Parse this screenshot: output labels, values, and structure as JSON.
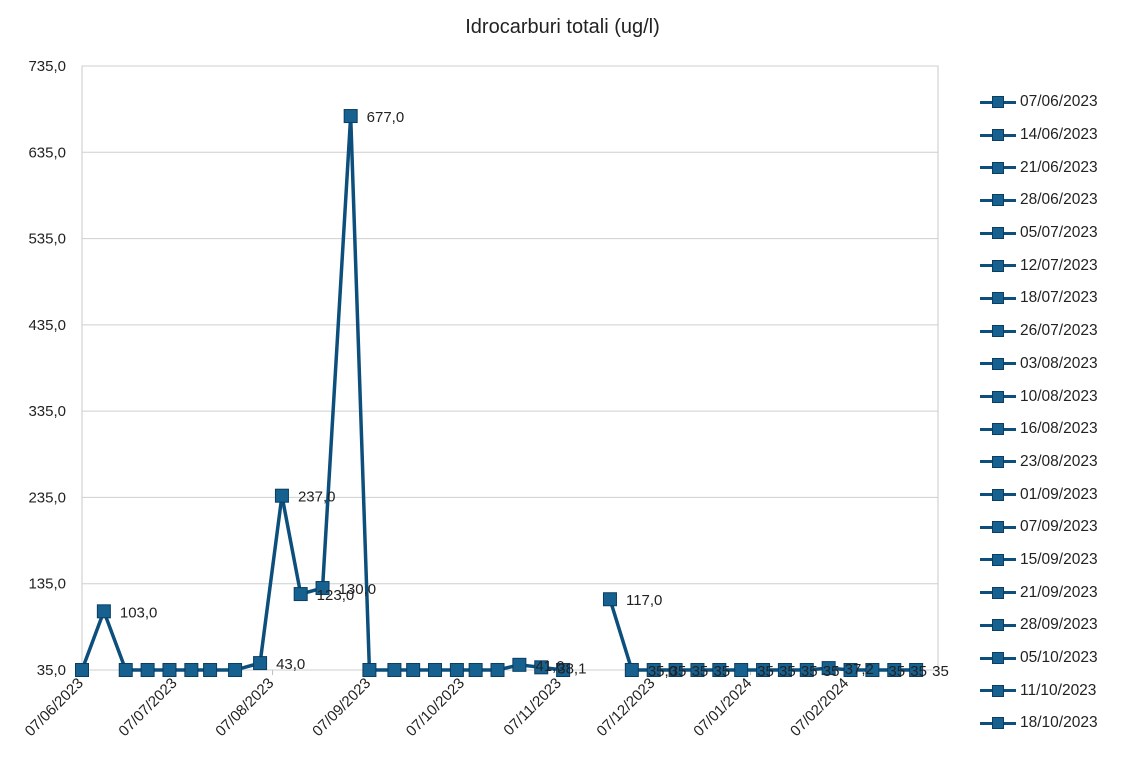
{
  "chart_data": {
    "type": "line",
    "title": "Idrocarburi totali (ug/l)",
    "xlabel": "",
    "ylabel": "",
    "ylim": [
      35,
      735
    ],
    "yticks": [
      "35,0",
      "135,0",
      "235,0",
      "335,0",
      "435,0",
      "535,0",
      "635,0",
      "735,0"
    ],
    "xlim": [
      "2023-06-07",
      "2024-03-07"
    ],
    "xticks": [
      {
        "date": "2023-06-07",
        "label": "07/06/2023"
      },
      {
        "date": "2023-07-07",
        "label": "07/07/2023"
      },
      {
        "date": "2023-08-07",
        "label": "07/08/2023"
      },
      {
        "date": "2023-09-07",
        "label": "07/09/2023"
      },
      {
        "date": "2023-10-07",
        "label": "07/10/2023"
      },
      {
        "date": "2023-11-07",
        "label": "07/11/2023"
      },
      {
        "date": "2023-12-07",
        "label": "07/12/2023"
      },
      {
        "date": "2024-01-07",
        "label": "07/01/2024"
      },
      {
        "date": "2024-02-07",
        "label": "07/02/2024"
      }
    ],
    "grid": true,
    "legend_position": "right",
    "line_color": "#0d4f7c",
    "marker_color": "#16618f",
    "series": [
      {
        "points": [
          {
            "x": "2023-06-07",
            "y": 35,
            "label": ""
          },
          {
            "x": "2023-06-14",
            "y": 103,
            "label": "103,0"
          },
          {
            "x": "2023-06-21",
            "y": 35,
            "label": ""
          },
          {
            "x": "2023-06-28",
            "y": 35,
            "label": ""
          },
          {
            "x": "2023-07-05",
            "y": 35,
            "label": ""
          },
          {
            "x": "2023-07-12",
            "y": 35,
            "label": ""
          },
          {
            "x": "2023-07-18",
            "y": 35,
            "label": ""
          },
          {
            "x": "2023-07-26",
            "y": 35,
            "label": ""
          },
          {
            "x": "2023-08-03",
            "y": 43,
            "label": "43,0"
          },
          {
            "x": "2023-08-10",
            "y": 237,
            "label": "237,0"
          },
          {
            "x": "2023-08-16",
            "y": 123,
            "label": "123,0"
          },
          {
            "x": "2023-08-23",
            "y": 130,
            "label": "130,0"
          },
          {
            "x": "2023-09-01",
            "y": 677,
            "label": "677,0"
          },
          {
            "x": "2023-09-07",
            "y": 35,
            "label": ""
          },
          {
            "x": "2023-09-15",
            "y": 35,
            "label": ""
          },
          {
            "x": "2023-09-21",
            "y": 35,
            "label": ""
          },
          {
            "x": "2023-09-28",
            "y": 35,
            "label": ""
          },
          {
            "x": "2023-10-05",
            "y": 35,
            "label": ""
          },
          {
            "x": "2023-10-11",
            "y": 35,
            "label": ""
          },
          {
            "x": "2023-10-18",
            "y": 35,
            "label": ""
          },
          {
            "x": "2023-10-25",
            "y": 41,
            "label": "41,0"
          },
          {
            "x": "2023-11-01",
            "y": 38.1,
            "label": "38,1"
          },
          {
            "x": "2023-11-08",
            "y": 35,
            "label": ""
          },
          {
            "x": "2023-11-23",
            "y": 117,
            "label": "117,0"
          },
          {
            "x": "2023-11-30",
            "y": 35,
            "label": "35,0"
          },
          {
            "x": "2023-12-07",
            "y": 35,
            "label": "35"
          },
          {
            "x": "2023-12-14",
            "y": 35,
            "label": "35"
          },
          {
            "x": "2023-12-21",
            "y": 35,
            "label": "35"
          },
          {
            "x": "2023-12-28",
            "y": 35,
            "label": ""
          },
          {
            "x": "2024-01-04",
            "y": 35,
            "label": "35"
          },
          {
            "x": "2024-01-11",
            "y": 35,
            "label": "35"
          },
          {
            "x": "2024-01-18",
            "y": 35,
            "label": "35"
          },
          {
            "x": "2024-01-25",
            "y": 35,
            "label": "35"
          },
          {
            "x": "2024-02-01",
            "y": 37.2,
            "label": "37,2"
          },
          {
            "x": "2024-02-08",
            "y": 35,
            "label": ""
          },
          {
            "x": "2024-02-15",
            "y": 35,
            "label": "35"
          },
          {
            "x": "2024-02-22",
            "y": 35,
            "label": "35"
          },
          {
            "x": "2024-02-29",
            "y": 35,
            "label": "35"
          }
        ]
      }
    ],
    "legend_entries": [
      "07/06/2023",
      "14/06/2023",
      "21/06/2023",
      "28/06/2023",
      "05/07/2023",
      "12/07/2023",
      "18/07/2023",
      "26/07/2023",
      "03/08/2023",
      "10/08/2023",
      "16/08/2023",
      "23/08/2023",
      "01/09/2023",
      "07/09/2023",
      "15/09/2023",
      "21/09/2023",
      "28/09/2023",
      "05/10/2023",
      "11/10/2023",
      "18/10/2023"
    ]
  }
}
